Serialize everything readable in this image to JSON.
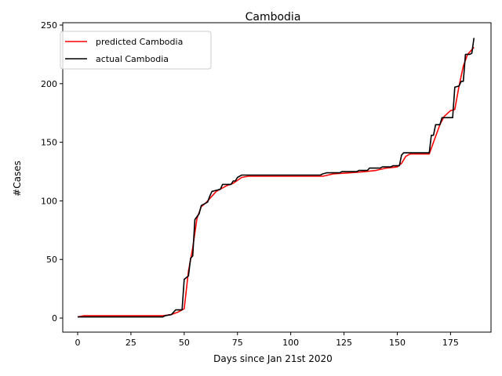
{
  "chart_data": {
    "type": "line",
    "title": "Cambodia",
    "xlabel": "Days since Jan 21st 2020",
    "ylabel": "#Cases",
    "xlim": [
      -7,
      194
    ],
    "ylim": [
      -12,
      252
    ],
    "xticks": [
      0,
      25,
      50,
      75,
      100,
      125,
      150,
      175
    ],
    "yticks": [
      0,
      50,
      100,
      150,
      200,
      250
    ],
    "grid": false,
    "legend_position": "top-left",
    "series": [
      {
        "name": "predicted Cambodia",
        "color": "#ff0000",
        "points": [
          [
            0,
            1
          ],
          [
            3,
            2
          ],
          [
            40,
            2
          ],
          [
            44,
            3
          ],
          [
            47,
            5
          ],
          [
            50,
            8
          ],
          [
            52,
            40
          ],
          [
            54,
            60
          ],
          [
            56,
            85
          ],
          [
            58,
            95
          ],
          [
            60,
            98
          ],
          [
            62,
            102
          ],
          [
            65,
            108
          ],
          [
            70,
            113
          ],
          [
            73,
            115
          ],
          [
            77,
            120
          ],
          [
            80,
            121
          ],
          [
            100,
            121
          ],
          [
            115,
            121
          ],
          [
            120,
            123
          ],
          [
            128,
            124
          ],
          [
            135,
            125
          ],
          [
            140,
            126
          ],
          [
            145,
            128
          ],
          [
            150,
            129
          ],
          [
            152,
            132
          ],
          [
            154,
            138
          ],
          [
            156,
            140
          ],
          [
            165,
            140
          ],
          [
            167,
            150
          ],
          [
            170,
            165
          ],
          [
            172,
            172
          ],
          [
            175,
            177
          ],
          [
            177,
            178
          ],
          [
            179,
            198
          ],
          [
            181,
            215
          ],
          [
            183,
            225
          ],
          [
            186,
            231
          ]
        ]
      },
      {
        "name": "actual Cambodia",
        "color": "#000000",
        "points": [
          [
            0,
            1
          ],
          [
            40,
            1
          ],
          [
            41,
            2
          ],
          [
            44,
            3
          ],
          [
            46,
            7
          ],
          [
            49,
            7
          ],
          [
            50,
            33
          ],
          [
            52,
            36
          ],
          [
            53,
            51
          ],
          [
            54,
            53
          ],
          [
            55,
            84
          ],
          [
            57,
            89
          ],
          [
            58,
            96
          ],
          [
            60,
            98
          ],
          [
            61,
            99
          ],
          [
            62,
            104
          ],
          [
            63,
            108
          ],
          [
            65,
            109
          ],
          [
            67,
            110
          ],
          [
            68,
            114
          ],
          [
            72,
            114
          ],
          [
            73,
            117
          ],
          [
            74,
            117
          ],
          [
            75,
            120
          ],
          [
            77,
            122
          ],
          [
            114,
            122
          ],
          [
            115,
            123
          ],
          [
            117,
            124
          ],
          [
            123,
            124
          ],
          [
            124,
            125
          ],
          [
            131,
            125
          ],
          [
            132,
            126
          ],
          [
            136,
            126
          ],
          [
            137,
            128
          ],
          [
            142,
            128
          ],
          [
            143,
            129
          ],
          [
            147,
            129
          ],
          [
            148,
            130
          ],
          [
            151,
            130
          ],
          [
            152,
            139
          ],
          [
            153,
            141
          ],
          [
            165,
            141
          ],
          [
            166,
            156
          ],
          [
            167,
            156
          ],
          [
            168,
            165
          ],
          [
            170,
            165
          ],
          [
            171,
            171
          ],
          [
            176,
            171
          ],
          [
            177,
            197
          ],
          [
            179,
            198
          ],
          [
            180,
            202
          ],
          [
            181,
            202
          ],
          [
            182,
            225
          ],
          [
            184,
            225
          ],
          [
            185,
            226
          ],
          [
            186,
            239
          ]
        ]
      }
    ]
  }
}
